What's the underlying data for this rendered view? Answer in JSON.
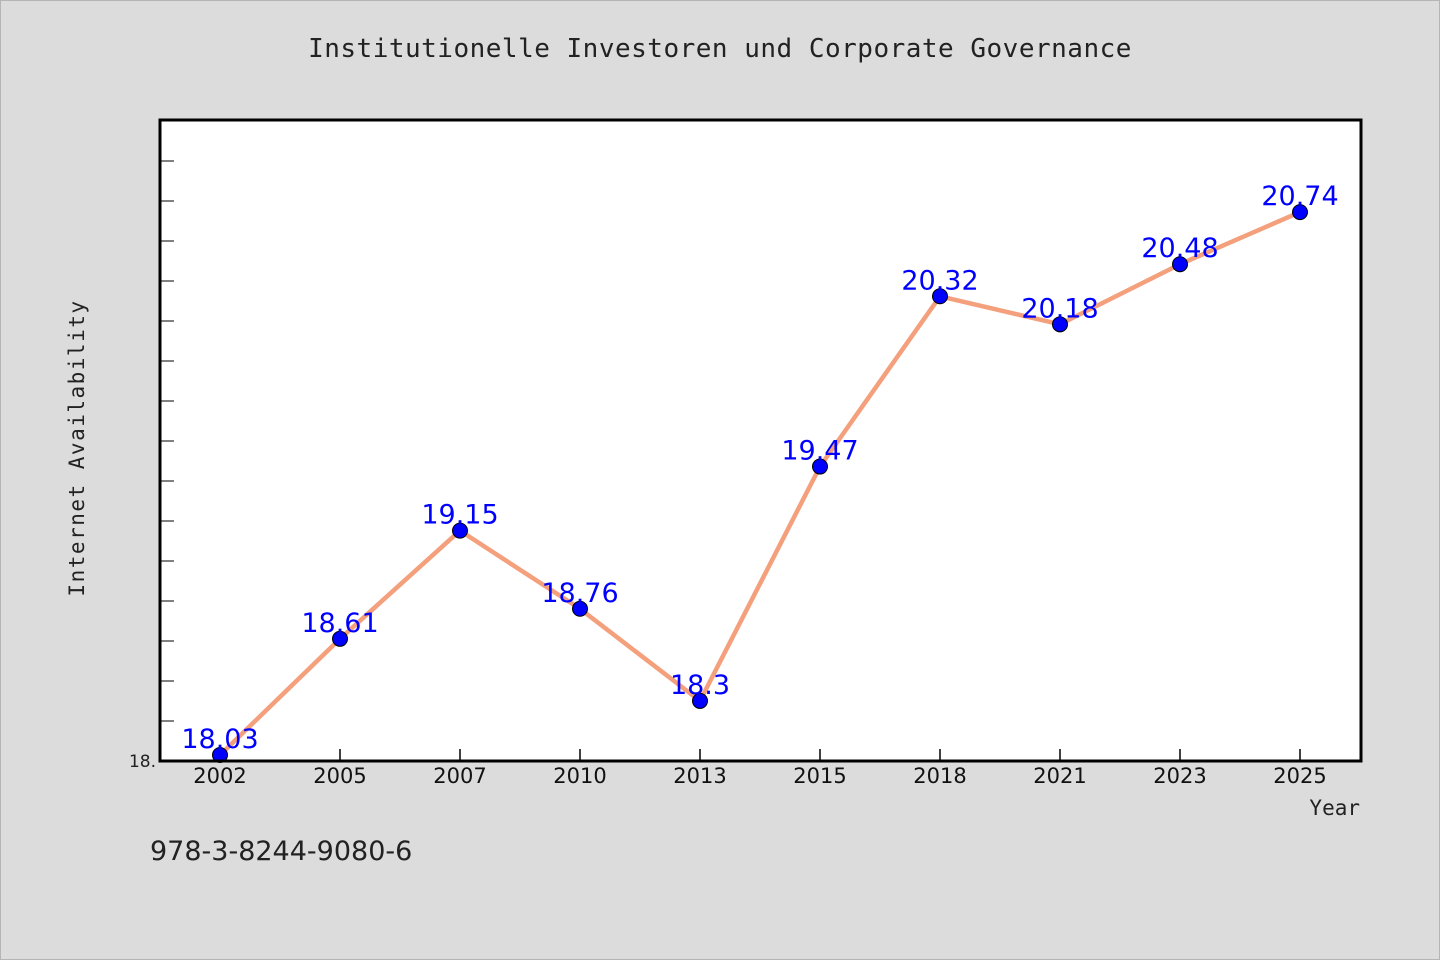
{
  "chart_data": {
    "type": "line",
    "title": "Institutionelle Investoren und Corporate Governance",
    "xlabel": "Year",
    "ylabel": "Internet Availability",
    "categories": [
      "2002",
      "2005",
      "2007",
      "2010",
      "2013",
      "2015",
      "2018",
      "2021",
      "2023",
      "2025"
    ],
    "series": [
      {
        "values": [
          18.03,
          18.61,
          19.15,
          18.76,
          18.3,
          19.47,
          20.32,
          20.18,
          20.48,
          20.74
        ],
        "data_labels": [
          "18.03",
          "18.61",
          "19.15",
          "18.76",
          "18.3",
          "19.47",
          "20.32",
          "20.18",
          "20.48",
          "20.74"
        ]
      }
    ],
    "ylim": [
      18.0,
      21.2
    ],
    "ytick_labels": [
      "18."
    ],
    "grid": false,
    "line_color": "#f4a07c",
    "marker_color": "#0000ff",
    "label_color": "#0000ff"
  },
  "footnote": "978-3-8244-9080-6"
}
